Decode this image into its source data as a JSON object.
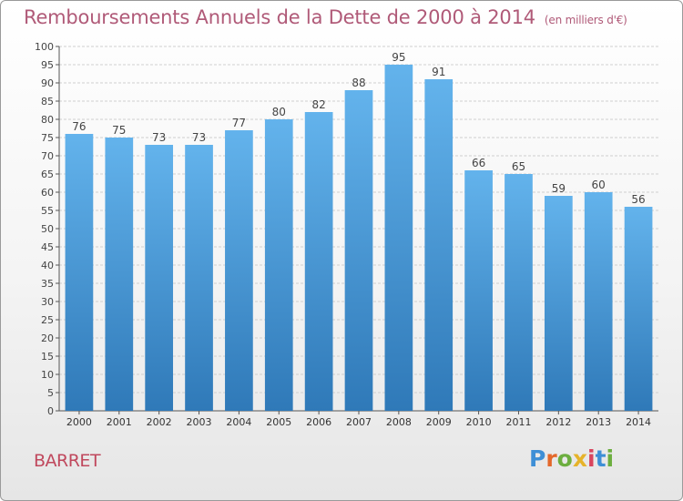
{
  "header": {
    "title": "Remboursements Annuels de la Dette de 2000 à 2014",
    "unit": "(en milliers d'€)"
  },
  "footer": {
    "commune": "BARRET",
    "logo_letters": [
      "P",
      "r",
      "o",
      "x",
      "i",
      "t",
      "i"
    ]
  },
  "colors": {
    "title": "#b05a78",
    "bar_top": "#63b3ec",
    "bar_bottom": "#2f79b8",
    "commune": "#c0485d"
  },
  "chart_data": {
    "type": "bar",
    "title": "Remboursements Annuels de la Dette de 2000 à 2014",
    "subtitle": "(en milliers d'€)",
    "categories": [
      "2000",
      "2001",
      "2002",
      "2003",
      "2004",
      "2005",
      "2006",
      "2007",
      "2008",
      "2009",
      "2010",
      "2011",
      "2012",
      "2013",
      "2014"
    ],
    "values": [
      76,
      75,
      73,
      73,
      77,
      80,
      82,
      88,
      95,
      91,
      66,
      65,
      59,
      60,
      56
    ],
    "ylim": [
      0,
      100
    ],
    "yticks": [
      0,
      5,
      10,
      15,
      20,
      25,
      30,
      35,
      40,
      45,
      50,
      55,
      60,
      65,
      70,
      75,
      80,
      85,
      90,
      95,
      100
    ],
    "grid": "horizontal",
    "data_labels": true
  }
}
